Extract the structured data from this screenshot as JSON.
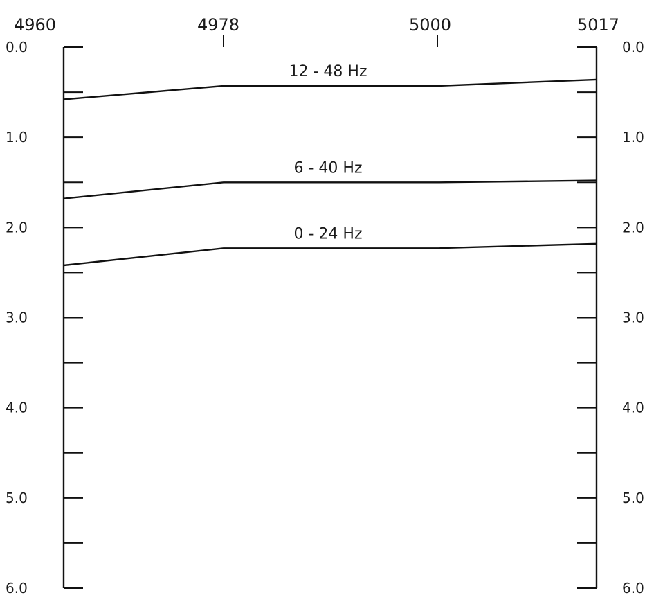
{
  "chart_data": {
    "type": "line",
    "x_ticks": [
      "4960",
      "4978",
      "5000",
      "5017"
    ],
    "y_ticks": [
      "0.0",
      "1.0",
      "2.0",
      "3.0",
      "4.0",
      "5.0",
      "6.0"
    ],
    "x_values": [
      4960,
      4978,
      5000,
      5017
    ],
    "ylim": [
      0,
      6
    ],
    "y_inverted": true,
    "y_minor_step": 0.5,
    "grid": false,
    "series": [
      {
        "name": "12 - 48 Hz",
        "values": [
          0.58,
          0.43,
          0.43,
          0.36
        ]
      },
      {
        "name": "6 - 40 Hz",
        "values": [
          1.68,
          1.5,
          1.5,
          1.48
        ]
      },
      {
        "name": "0 - 24 Hz",
        "values": [
          2.42,
          2.23,
          2.23,
          2.18
        ]
      }
    ]
  }
}
